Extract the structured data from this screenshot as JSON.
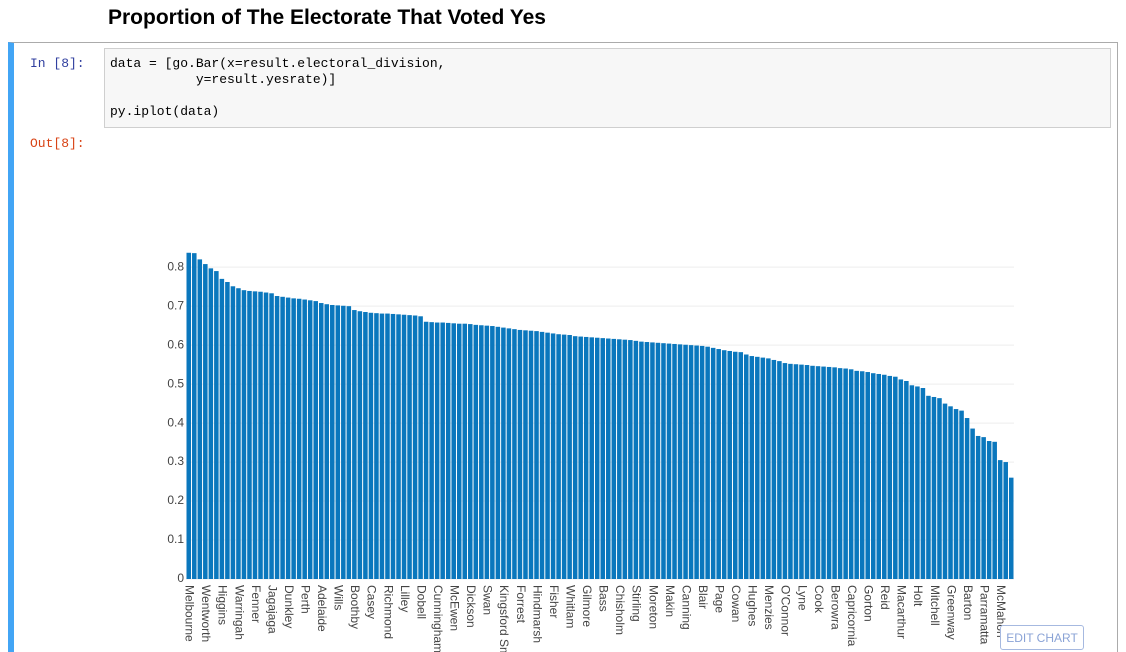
{
  "header": {
    "title": "Proportion of The Electorate That Voted Yes"
  },
  "cell": {
    "in_prompt": "In [8]:",
    "code": [
      "data = [go.Bar(x=result.electoral_division,",
      "           y=result.yesrate)]",
      "py.iplot(data)"
    ],
    "out_prompt": "Out[8]:"
  },
  "chart_data": {
    "type": "bar",
    "color": "#0a77bd",
    "grid": true,
    "categories": [
      "Melbourne",
      null,
      null,
      "Wentworth",
      null,
      null,
      "Higgins",
      null,
      null,
      "Warringah",
      null,
      null,
      "Fenner",
      null,
      null,
      "Jagajaga",
      null,
      null,
      "Dunkley",
      null,
      null,
      "Perth",
      null,
      null,
      "Adelaide",
      null,
      null,
      "Wills",
      null,
      null,
      "Boothby",
      null,
      null,
      "Casey",
      null,
      null,
      "Richmond",
      null,
      null,
      "Lilley",
      null,
      null,
      "Dobell",
      null,
      null,
      "Cunningham",
      null,
      null,
      "McEwen",
      null,
      null,
      "Dickson",
      null,
      null,
      "Swan",
      null,
      null,
      "Kingsford Smith",
      null,
      null,
      "Forrest",
      null,
      null,
      "Hindmarsh",
      null,
      null,
      "Fisher",
      null,
      null,
      "Whitlam",
      null,
      null,
      "Gilmore",
      null,
      null,
      "Bass",
      null,
      null,
      "Chisholm",
      null,
      null,
      "Stirling",
      null,
      null,
      "Moreton",
      null,
      null,
      "Makin",
      null,
      null,
      "Canning",
      null,
      null,
      "Blair",
      null,
      null,
      "Page",
      null,
      null,
      "Cowan",
      null,
      null,
      "Hughes",
      null,
      null,
      "Menzies",
      null,
      null,
      "O'Connor",
      null,
      null,
      "Lyne",
      null,
      null,
      "Cook",
      null,
      null,
      "Berowra",
      null,
      null,
      "Capricornia",
      null,
      null,
      "Gorton",
      null,
      null,
      "Reid",
      null,
      null,
      "Macarthur",
      null,
      null,
      "Holt",
      null,
      null,
      "Mitchell",
      null,
      null,
      "Greenway",
      null,
      null,
      "Barton",
      null,
      null,
      "Parramatta",
      null,
      null,
      "McMahon",
      null,
      null
    ],
    "values": [
      0.837,
      0.836,
      0.82,
      0.808,
      0.797,
      0.79,
      0.77,
      0.762,
      0.751,
      0.746,
      0.741,
      0.739,
      0.738,
      0.737,
      0.735,
      0.733,
      0.726,
      0.724,
      0.722,
      0.72,
      0.719,
      0.717,
      0.715,
      0.713,
      0.708,
      0.705,
      0.703,
      0.702,
      0.701,
      0.7,
      0.69,
      0.687,
      0.685,
      0.683,
      0.682,
      0.681,
      0.681,
      0.68,
      0.679,
      0.678,
      0.677,
      0.676,
      0.674,
      0.66,
      0.659,
      0.658,
      0.658,
      0.657,
      0.656,
      0.655,
      0.655,
      0.654,
      0.652,
      0.651,
      0.65,
      0.649,
      0.647,
      0.645,
      0.643,
      0.641,
      0.639,
      0.638,
      0.637,
      0.636,
      0.634,
      0.632,
      0.63,
      0.628,
      0.627,
      0.626,
      0.623,
      0.622,
      0.621,
      0.62,
      0.619,
      0.618,
      0.617,
      0.616,
      0.615,
      0.614,
      0.613,
      0.611,
      0.609,
      0.608,
      0.607,
      0.606,
      0.605,
      0.604,
      0.603,
      0.602,
      0.601,
      0.6,
      0.599,
      0.598,
      0.596,
      0.593,
      0.59,
      0.587,
      0.585,
      0.583,
      0.582,
      0.576,
      0.572,
      0.57,
      0.568,
      0.566,
      0.562,
      0.559,
      0.554,
      0.552,
      0.551,
      0.55,
      0.549,
      0.547,
      0.546,
      0.545,
      0.544,
      0.543,
      0.541,
      0.54,
      0.538,
      0.534,
      0.533,
      0.531,
      0.528,
      0.526,
      0.524,
      0.521,
      0.519,
      0.512,
      0.508,
      0.497,
      0.494,
      0.49,
      0.47,
      0.467,
      0.464,
      0.45,
      0.443,
      0.436,
      0.432,
      0.413,
      0.386,
      0.367,
      0.364,
      0.354,
      0.352,
      0.305,
      0.3,
      0.26
    ],
    "ylim": [
      0,
      0.88
    ],
    "yticks": [
      0,
      0.1,
      0.2,
      0.3,
      0.4,
      0.5,
      0.6,
      0.7,
      0.8
    ]
  },
  "button": {
    "label": "EDIT CHART"
  }
}
